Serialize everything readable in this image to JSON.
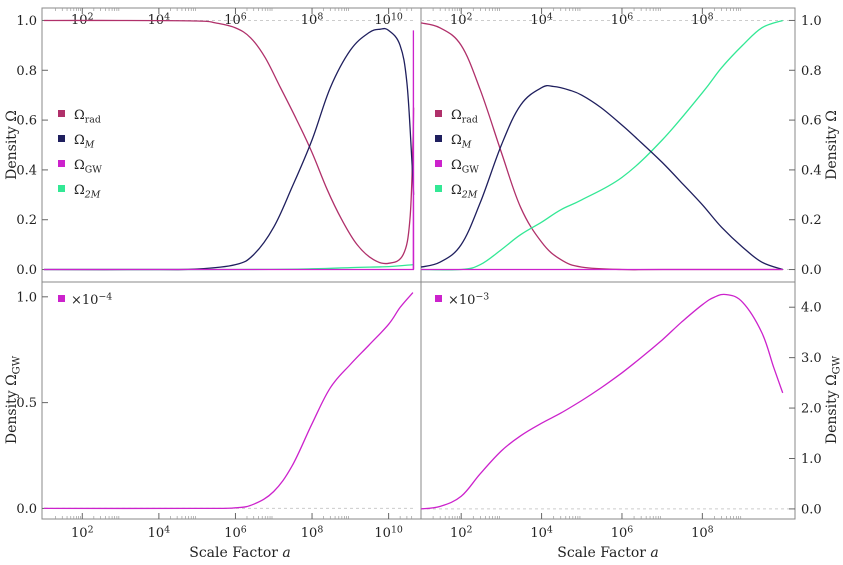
{
  "colors": {
    "rad": "#b0306a",
    "M": "#1f1f5e",
    "GW": "#cc22cc",
    "twoM": "#33e895",
    "frame": "#888888",
    "grid": "#cccccc"
  },
  "axis_text": {
    "xlabel": "Scale Factor a",
    "ylabel_top_left": "Density Ω",
    "ylabel_top_right": "Density Ω",
    "ylabel_bottom_left": "Density Ω_GW",
    "ylabel_bottom_right": "Density Ω_GW"
  },
  "legend": {
    "items": [
      {
        "key": "rad",
        "label": "Ω_rad"
      },
      {
        "key": "M",
        "label": "Ω_M"
      },
      {
        "key": "GW",
        "label": "Ω_GW"
      },
      {
        "key": "twoM",
        "label": "Ω_2M"
      }
    ]
  },
  "chart_data": [
    {
      "id": "top-left",
      "type": "line",
      "xscale": "log",
      "xticks": [
        "10^2",
        "10^4",
        "10^6",
        "10^8",
        "10^10"
      ],
      "yticks": [
        "0.0",
        "0.2",
        "0.4",
        "0.6",
        "0.8",
        "1.0"
      ],
      "xlim": [
        10.0,
        46000000000.0
      ],
      "ylim": [
        -0.05,
        1.05
      ],
      "grid": "dashed at y=0 and y=1",
      "legend_position": "left-middle",
      "series": [
        {
          "key": "rad",
          "name": "Ω_rad",
          "x": [
            10.0,
            1000.0,
            100000.0,
            300000.0,
            1000000.0,
            2500000.0,
            6000000.0,
            15000000.0,
            40000000.0,
            100000000.0,
            250000000.0,
            600000000.0,
            1500000000.0,
            4000000000.0,
            10000000000.0,
            24000000000.0,
            36000000000.0,
            43000000000.0,
            45000000000.0
          ],
          "y": [
            1.0,
            1.0,
            0.998,
            0.99,
            0.97,
            0.93,
            0.85,
            0.73,
            0.6,
            0.47,
            0.32,
            0.2,
            0.1,
            0.04,
            0.025,
            0.06,
            0.2,
            0.5,
            0.65
          ]
        },
        {
          "key": "M",
          "name": "Ω_M",
          "x": [
            10.0,
            10000.0,
            100000.0,
            1000000.0,
            3000000.0,
            10000000.0,
            30000000.0,
            100000000.0,
            300000000.0,
            1000000000.0,
            3000000000.0,
            6000000000.0,
            10000000000.0,
            20000000000.0,
            30000000000.0,
            40000000000.0,
            45000000000.0
          ],
          "y": [
            0.0,
            0.0,
            0.002,
            0.02,
            0.06,
            0.17,
            0.33,
            0.52,
            0.73,
            0.88,
            0.95,
            0.965,
            0.96,
            0.9,
            0.75,
            0.45,
            0.3
          ]
        },
        {
          "key": "GW",
          "name": "Ω_GW",
          "x": [
            10.0,
            44000000000.0,
            44500000000.0,
            45000000000.0
          ],
          "y": [
            0.0,
            0.0,
            0.96,
            0.0
          ]
        },
        {
          "key": "twoM",
          "name": "Ω_2M",
          "x": [
            10.0,
            1000000.0,
            100000000.0,
            1000000000.0,
            10000000000.0,
            45000000000.0
          ],
          "y": [
            0.0,
            0.0,
            0.003,
            0.008,
            0.012,
            0.02
          ]
        }
      ]
    },
    {
      "id": "top-right",
      "type": "line",
      "xscale": "log",
      "xticks": [
        "10^2",
        "10^4",
        "10^6",
        "10^8"
      ],
      "yticks": [
        "0.0",
        "0.2",
        "0.4",
        "0.6",
        "0.8",
        "1.0"
      ],
      "xlim": [
        10.0,
        18000000000.0
      ],
      "ylim": [
        -0.05,
        1.05
      ],
      "grid": "dashed at y=0 and y=1",
      "legend_position": "left-middle",
      "series": [
        {
          "key": "rad",
          "name": "Ω_rad",
          "x": [
            10.0,
            30.0,
            100.0,
            300.0,
            1000.0,
            3000.0,
            10000.0,
            30000.0,
            100000.0,
            1000000.0,
            10000000.0,
            10000000000.0
          ],
          "y": [
            0.99,
            0.97,
            0.9,
            0.72,
            0.47,
            0.25,
            0.11,
            0.04,
            0.01,
            0.0,
            0.0,
            0.0
          ]
        },
        {
          "key": "M",
          "name": "Ω_M",
          "x": [
            10.0,
            30.0,
            100.0,
            300.0,
            1000.0,
            3000.0,
            10000.0,
            20000.0,
            50000.0,
            100000.0,
            300000.0,
            1000000.0,
            3000000.0,
            10000000.0,
            30000000.0,
            100000000.0,
            300000000.0,
            1000000000.0,
            3000000000.0,
            10000000000.0
          ],
          "y": [
            0.01,
            0.03,
            0.1,
            0.27,
            0.5,
            0.66,
            0.73,
            0.735,
            0.72,
            0.7,
            0.65,
            0.58,
            0.51,
            0.43,
            0.35,
            0.26,
            0.17,
            0.09,
            0.03,
            0.0
          ]
        },
        {
          "key": "GW",
          "name": "Ω_GW",
          "x": [
            10.0,
            10000000000.0
          ],
          "y": [
            0.0,
            0.0
          ]
        },
        {
          "key": "twoM",
          "name": "Ω_2M",
          "x": [
            10.0,
            100.0,
            300.0,
            1000.0,
            3000.0,
            10000.0,
            30000.0,
            100000.0,
            1000000.0,
            10000000.0,
            100000000.0,
            300000000.0,
            1000000000.0,
            3000000000.0,
            10000000000.0
          ],
          "y": [
            0.0,
            0.0,
            0.02,
            0.08,
            0.14,
            0.19,
            0.24,
            0.28,
            0.37,
            0.52,
            0.71,
            0.81,
            0.9,
            0.97,
            1.0
          ]
        }
      ]
    },
    {
      "id": "bottom-left",
      "type": "line",
      "xscale": "log",
      "xticks": [
        "10^2",
        "10^4",
        "10^6",
        "10^8",
        "10^10"
      ],
      "yticks": [
        "0.0",
        "0.5",
        "1.0"
      ],
      "multiplier": "×10^−4",
      "xlim": [
        10.0,
        46000000000.0
      ],
      "ylim": [
        -0.05,
        1.07
      ],
      "grid": "dashed at y=0",
      "legend_position": "top-left",
      "series": [
        {
          "key": "GW",
          "name": "Ω_GW",
          "x": [
            10.0,
            100000.0,
            1000000.0,
            3000000.0,
            10000000.0,
            30000000.0,
            100000000.0,
            300000000.0,
            1000000000.0,
            3000000000.0,
            10000000000.0,
            20000000000.0,
            43000000000.0
          ],
          "y": [
            0.0,
            0.0,
            0.003,
            0.02,
            0.08,
            0.2,
            0.4,
            0.57,
            0.68,
            0.77,
            0.87,
            0.95,
            1.02
          ]
        }
      ]
    },
    {
      "id": "bottom-right",
      "type": "line",
      "xscale": "log",
      "xticks": [
        "10^2",
        "10^4",
        "10^6",
        "10^8"
      ],
      "yticks": [
        "0.0",
        "1.0",
        "2.0",
        "3.0",
        "4.0"
      ],
      "multiplier": "×10^−3",
      "xlim": [
        10.0,
        18000000000.0
      ],
      "ylim": [
        -0.2,
        4.5
      ],
      "grid": "dashed at y=0",
      "legend_position": "top-left",
      "series": [
        {
          "key": "GW",
          "name": "Ω_GW",
          "x": [
            10.0,
            30.0,
            100.0,
            300.0,
            1000.0,
            3000.0,
            10000.0,
            30000.0,
            100000.0,
            300000.0,
            1000000.0,
            3000000.0,
            10000000.0,
            30000000.0,
            100000000.0,
            200000000.0,
            400000000.0,
            1000000000.0,
            3000000000.0,
            6000000000.0,
            10000000000.0
          ],
          "y": [
            0.0,
            0.05,
            0.25,
            0.7,
            1.15,
            1.45,
            1.7,
            1.9,
            2.15,
            2.4,
            2.7,
            3.0,
            3.35,
            3.7,
            4.05,
            4.2,
            4.25,
            4.1,
            3.5,
            2.8,
            2.3
          ]
        }
      ]
    }
  ]
}
